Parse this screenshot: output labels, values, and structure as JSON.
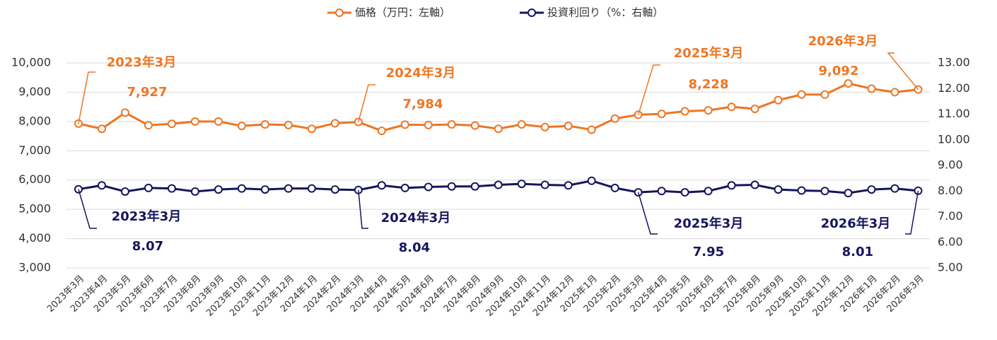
{
  "chart_data": {
    "type": "line",
    "categories": [
      "2023年3月",
      "2023年4月",
      "2023年5月",
      "2023年6月",
      "2023年7月",
      "2023年8月",
      "2023年9月",
      "2023年10月",
      "2023年11月",
      "2023年12月",
      "2024年1月",
      "2024年2月",
      "2024年3月",
      "2024年4月",
      "2024年5月",
      "2024年6月",
      "2024年7月",
      "2024年8月",
      "2024年9月",
      "2024年10月",
      "2024年11月",
      "2024年12月",
      "2025年1月",
      "2025年2月",
      "2025年3月",
      "2025年4月",
      "2025年5月",
      "2025年6月",
      "2025年7月",
      "2025年8月",
      "2025年9月",
      "2025年10月",
      "2025年11月",
      "2025年12月",
      "2026年1月",
      "2026年2月",
      "2026年3月"
    ],
    "series": [
      {
        "name": "価格（万円：左軸）",
        "color": "#ee7623",
        "axis": "y",
        "values": [
          7927,
          7750,
          8300,
          7870,
          7920,
          8000,
          8000,
          7850,
          7900,
          7880,
          7750,
          7940,
          7984,
          7680,
          7890,
          7880,
          7900,
          7860,
          7750,
          7900,
          7810,
          7850,
          7720,
          8100,
          8228,
          8260,
          8350,
          8380,
          8500,
          8430,
          8730,
          8920,
          8920,
          9300,
          9120,
          9000,
          9092
        ],
        "value_labels": [
          "7,927",
          null,
          null,
          null,
          null,
          null,
          null,
          null,
          null,
          null,
          null,
          null,
          "7,984",
          null,
          null,
          null,
          null,
          null,
          null,
          null,
          null,
          null,
          null,
          null,
          "8,228",
          null,
          null,
          null,
          null,
          null,
          null,
          null,
          null,
          null,
          null,
          null,
          "9,092"
        ]
      },
      {
        "name": "投資利回り（%：右軸）",
        "color": "#15155e",
        "axis": "y2",
        "values": [
          8.07,
          8.22,
          7.98,
          8.12,
          8.1,
          7.98,
          8.06,
          8.1,
          8.06,
          8.1,
          8.1,
          8.06,
          8.04,
          8.22,
          8.12,
          8.16,
          8.18,
          8.18,
          8.24,
          8.28,
          8.24,
          8.22,
          8.4,
          8.12,
          7.95,
          8.0,
          7.95,
          8.0,
          8.22,
          8.24,
          8.06,
          8.02,
          8.0,
          7.92,
          8.06,
          8.1,
          8.01
        ],
        "value_labels": [
          "8.07",
          null,
          null,
          null,
          null,
          null,
          null,
          null,
          null,
          null,
          null,
          null,
          "8.04",
          null,
          null,
          null,
          null,
          null,
          null,
          null,
          null,
          null,
          null,
          null,
          "7.95",
          null,
          null,
          null,
          null,
          null,
          null,
          null,
          null,
          null,
          null,
          null,
          "8.01"
        ]
      }
    ],
    "ylim": [
      3000,
      10000
    ],
    "yticks": [
      {
        "value": 3000,
        "label": "3,000"
      },
      {
        "value": 4000,
        "label": "4,000"
      },
      {
        "value": 5000,
        "label": "5,000"
      },
      {
        "value": 6000,
        "label": "6,000"
      },
      {
        "value": 7000,
        "label": "7,000"
      },
      {
        "value": 8000,
        "label": "8,000"
      },
      {
        "value": 9000,
        "label": "9,000"
      },
      {
        "value": 10000,
        "label": "10,000"
      }
    ],
    "y2lim": [
      5,
      13
    ],
    "y2ticks": [
      {
        "value": 5,
        "label": "5.00"
      },
      {
        "value": 6,
        "label": "6.00"
      },
      {
        "value": 7,
        "label": "7.00"
      },
      {
        "value": 8,
        "label": "8.00"
      },
      {
        "value": 9,
        "label": "9.00"
      },
      {
        "value": 10,
        "label": "10.00"
      },
      {
        "value": 11,
        "label": "11.00"
      },
      {
        "value": 12,
        "label": "12.00"
      },
      {
        "value": 13,
        "label": "13.00"
      }
    ],
    "grid": true,
    "legend": "top"
  }
}
